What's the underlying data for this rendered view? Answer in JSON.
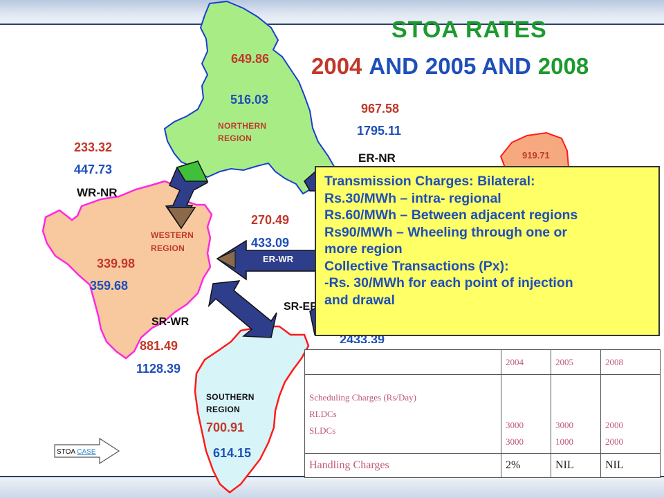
{
  "title": {
    "line1": "STOA  RATES",
    "y2004": "2004",
    "and1": "AND",
    "y2005": "2005 AND",
    "y2008": "2008"
  },
  "colors": {
    "y2004": "#c0392b",
    "y2005": "#1f4fb8",
    "y2008": "#1c9a2e",
    "north": "#a8ec86",
    "west": "#f8c89e",
    "south": "#d7f4f8",
    "east": "#f6a97e"
  },
  "regions": {
    "northern": [
      "NORTHERN",
      "REGION"
    ],
    "western": [
      "WESTERN",
      "REGION"
    ],
    "southern": [
      "SOUTHERN",
      "REGION"
    ],
    "eastern_value": "919.71"
  },
  "values": {
    "north_red": "649.86",
    "north_blue": "516.03",
    "ernr_red": "967.58",
    "ernr_blue": "1795.11",
    "ernr_label": "ER-NR",
    "wrnr_red": "233.32",
    "wrnr_blue": "447.73",
    "wrnr_label": "WR-NR",
    "erwr_red": "270.49",
    "erwr_blue": "433.09",
    "erwr_label": "ER-WR",
    "west_red": "339.98",
    "west_blue": "359.68",
    "srwr_label": "SR-WR",
    "srwr_red": "881.49",
    "srwr_blue": "1128.39",
    "srer_label": "SR-ER",
    "srer_blue": "2433.39",
    "south_red": "700.91",
    "south_blue": "614.15"
  },
  "note": [
    "Transmission Charges: Bilateral:",
    "Rs.30/MWh – intra- regional",
    "Rs.60/MWh – Between adjacent regions",
    "Rs90/MWh – Wheeling through one or",
    "more region",
    "Collective Transactions (Px):",
    "-Rs. 30/MWh for each point of injection",
    "and drawal"
  ],
  "charges_table": {
    "years": [
      "2004",
      "2005",
      "2008"
    ],
    "scheduling_label": "Scheduling Charges (Rs/Day)",
    "rldcs_label": "RLDCs",
    "sldcs_label": "SLDCs",
    "col2004": [
      "3000",
      "3000"
    ],
    "col2005": [
      "3000",
      "1000"
    ],
    "col2008": [
      "2000",
      "2000"
    ],
    "handling_label": "Handling Charges",
    "handling": [
      "2%",
      "NIL",
      "NIL"
    ]
  },
  "case_button": {
    "prefix": "STOA",
    "link": "CASE"
  }
}
